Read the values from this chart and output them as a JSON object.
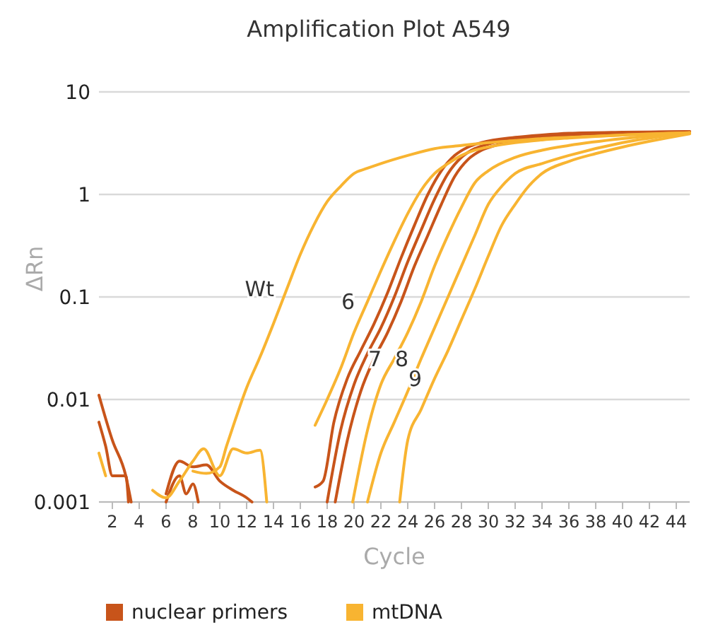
{
  "chart_data": {
    "type": "line",
    "title": "Amplification Plot A549",
    "xlabel": "Cycle",
    "ylabel": "ΔRn",
    "log": true,
    "grid": "y",
    "legend": "bottom",
    "xlim": [
      1,
      45
    ],
    "xticks": [
      2,
      4,
      6,
      8,
      10,
      12,
      14,
      16,
      18,
      20,
      22,
      24,
      26,
      28,
      30,
      32,
      34,
      36,
      38,
      40,
      42,
      44
    ],
    "ylim": [
      0.001,
      10
    ],
    "yticks": [
      0.001,
      0.01,
      0.1,
      1,
      10
    ],
    "series": [
      {
        "name": "nuclear primers",
        "color": "#c8541a",
        "x": [
          1,
          2,
          3,
          3.4,
          4,
          6,
          7,
          8,
          9,
          10,
          11,
          12,
          12.4,
          13,
          18,
          19,
          20,
          21,
          22,
          23,
          24,
          25,
          26,
          27,
          28,
          29,
          30,
          32,
          34,
          36,
          40,
          45
        ],
        "values": [
          0.011,
          0.004,
          0.0018,
          0.001,
          null,
          0.0012,
          0.0025,
          0.0022,
          0.0023,
          0.0016,
          0.0013,
          0.0011,
          0.001,
          null,
          0.001,
          0.005,
          0.014,
          0.028,
          0.05,
          0.1,
          0.22,
          0.45,
          0.9,
          1.6,
          2.3,
          2.8,
          3.1,
          3.5,
          3.7,
          3.9,
          4.0,
          4.1
        ]
      },
      {
        "color": "#c8541a",
        "x": [
          1,
          1.5,
          2,
          3,
          3.2,
          4,
          6,
          7,
          7.5,
          8,
          8.4,
          10,
          18.6,
          19.5,
          20.5,
          21.5,
          22.5,
          23.5,
          24.5,
          25.5,
          26.5,
          27.5,
          28.5,
          29.5,
          30.5,
          32,
          34,
          36,
          40,
          45
        ],
        "values": [
          0.006,
          0.0035,
          0.0018,
          0.0018,
          0.001,
          null,
          0.001,
          0.0018,
          0.0012,
          0.0015,
          0.001,
          null,
          0.001,
          0.004,
          0.012,
          0.025,
          0.045,
          0.09,
          0.2,
          0.4,
          0.8,
          1.5,
          2.2,
          2.7,
          3.0,
          3.35,
          3.6,
          3.8,
          4.0,
          4.1
        ]
      },
      {
        "color": "#c8541a",
        "x": [
          17.1,
          17.7,
          18.5,
          19.5,
          20.5,
          21.5,
          22.5,
          23.5,
          24.5,
          25.5,
          26.5,
          27.5,
          28.5,
          29.5,
          32,
          34,
          36,
          40,
          45
        ],
        "values": [
          0.0014,
          0.0016,
          0.006,
          0.016,
          0.03,
          0.055,
          0.11,
          0.24,
          0.5,
          1.0,
          1.7,
          2.4,
          2.9,
          3.2,
          3.6,
          3.8,
          3.95,
          4.05,
          4.1
        ]
      },
      {
        "name": "mtDNA",
        "color": "#f8b431",
        "x": [
          1,
          1.5,
          2,
          8,
          9,
          10,
          10.5,
          11,
          12,
          13,
          14,
          15,
          16,
          17,
          18,
          19,
          20,
          21,
          22,
          24,
          26,
          28,
          30,
          32,
          34,
          36,
          40,
          45
        ],
        "values": [
          0.003,
          0.0018,
          null,
          0.002,
          0.0019,
          0.0022,
          0.0035,
          0.0055,
          0.013,
          0.026,
          0.055,
          0.12,
          0.26,
          0.5,
          0.85,
          1.2,
          1.6,
          1.8,
          2.0,
          2.4,
          2.8,
          3.0,
          3.2,
          3.35,
          3.5,
          3.6,
          3.8,
          4.0
        ]
      },
      {
        "color": "#f8b431",
        "x": [
          5,
          6,
          7,
          8,
          8.8,
          10,
          11,
          12,
          13,
          13.5
        ],
        "values": [
          0.0013,
          0.0011,
          0.0016,
          0.0025,
          0.0033,
          0.0018,
          0.0033,
          0.003,
          0.0032,
          0.001
        ]
      },
      {
        "color": "#f8b431",
        "x": [
          17.1,
          18,
          19,
          20,
          21,
          22,
          23,
          24,
          25,
          26,
          27,
          28,
          29,
          30,
          32,
          34,
          36,
          40,
          45
        ],
        "values": [
          0.0056,
          0.01,
          0.02,
          0.045,
          0.09,
          0.18,
          0.35,
          0.65,
          1.1,
          1.6,
          2.0,
          2.4,
          2.7,
          2.9,
          3.2,
          3.4,
          3.55,
          3.8,
          4.0
        ]
      },
      {
        "color": "#f8b431",
        "x": [
          19.9,
          21,
          22,
          23,
          24,
          25,
          26,
          27,
          28,
          29,
          30,
          32,
          34,
          36,
          40,
          45
        ],
        "values": [
          0.001,
          0.005,
          0.014,
          0.025,
          0.045,
          0.09,
          0.2,
          0.4,
          0.75,
          1.3,
          1.7,
          2.3,
          2.7,
          3.0,
          3.5,
          4.0
        ]
      },
      {
        "color": "#f8b431",
        "x": [
          21,
          22,
          23,
          24,
          25,
          26,
          27,
          28,
          29,
          30,
          31,
          32,
          34,
          36,
          40,
          45
        ],
        "values": [
          0.001,
          0.003,
          0.006,
          0.012,
          0.025,
          0.05,
          0.1,
          0.2,
          0.4,
          0.8,
          1.2,
          1.6,
          2.0,
          2.4,
          3.2,
          4.0
        ]
      },
      {
        "color": "#f8b431",
        "x": [
          23.4,
          24,
          25,
          26,
          27,
          28,
          29,
          30,
          31,
          32,
          33,
          34,
          36,
          38,
          40,
          45
        ],
        "values": [
          0.001,
          0.004,
          0.008,
          0.016,
          0.03,
          0.06,
          0.12,
          0.25,
          0.5,
          0.8,
          1.2,
          1.6,
          2.1,
          2.5,
          2.9,
          3.9
        ]
      }
    ],
    "annotations": [
      {
        "text": "Wt",
        "x": 15,
        "y": 0.12
      },
      {
        "text": "6",
        "x": 21,
        "y": 0.09
      },
      {
        "text": "7",
        "x": 23,
        "y": 0.025
      },
      {
        "text": "8",
        "x": 25,
        "y": 0.025
      },
      {
        "text": "9",
        "x": 26,
        "y": 0.016
      }
    ]
  }
}
